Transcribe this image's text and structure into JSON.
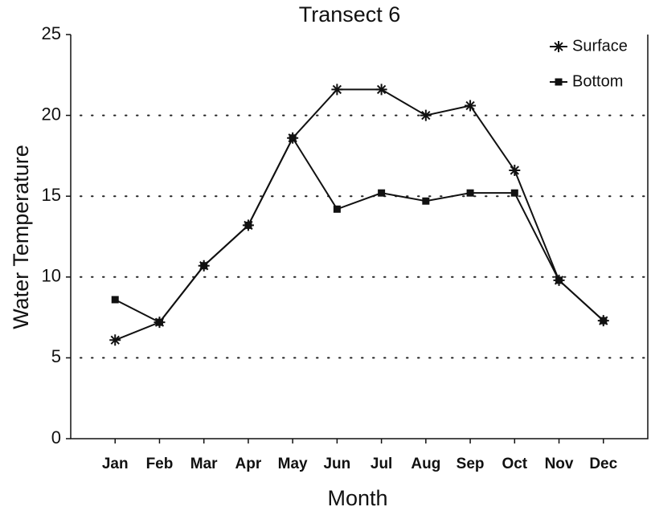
{
  "chart_data": {
    "type": "line",
    "title": "Transect 6",
    "xlabel": "Month",
    "ylabel": "Water Temperature",
    "categories": [
      "Jan",
      "Feb",
      "Mar",
      "Apr",
      "May",
      "Jun",
      "Jul",
      "Aug",
      "Sep",
      "Oct",
      "Nov",
      "Dec"
    ],
    "series": [
      {
        "name": "Surface",
        "color": "#111111",
        "marker": "star",
        "values": [
          6.1,
          7.2,
          10.7,
          13.2,
          18.6,
          21.6,
          21.6,
          20.0,
          20.6,
          16.6,
          9.8,
          7.3
        ]
      },
      {
        "name": "Bottom",
        "color": "#111111",
        "marker": "square",
        "values": [
          8.6,
          7.2,
          10.7,
          13.2,
          18.6,
          14.2,
          15.2,
          14.7,
          15.2,
          15.2,
          9.8,
          7.3
        ]
      }
    ],
    "ylim": [
      0,
      25
    ],
    "yticks": [
      0,
      5,
      10,
      15,
      20,
      25
    ],
    "grid": true,
    "legend": "upper right"
  }
}
